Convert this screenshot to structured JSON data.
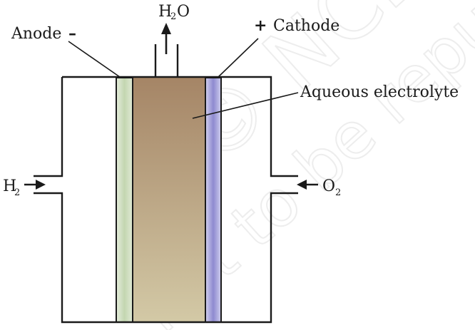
{
  "labels": {
    "anode": "Anode",
    "anode_sign": "–",
    "cathode": "Cathode",
    "cathode_sign": "+",
    "electrolyte": "Aqueous electrolyte",
    "h2_main": "H",
    "h2_sub": "2",
    "o2_main": "O",
    "o2_sub": "2",
    "h2o_h": "H",
    "h2o_sub": "2",
    "h2o_o": "O"
  },
  "watermark": {
    "line1": "© NCERT",
    "line2": "not to be republished"
  },
  "colors": {
    "outline": "#1a1a1a",
    "anode_fill": "#c8d9b8",
    "cathode_fill": "#9d9ad6",
    "electrolyte_top": "#a58566",
    "electrolyte_bottom": "#d3c9a6",
    "watermark": "#ececec"
  }
}
